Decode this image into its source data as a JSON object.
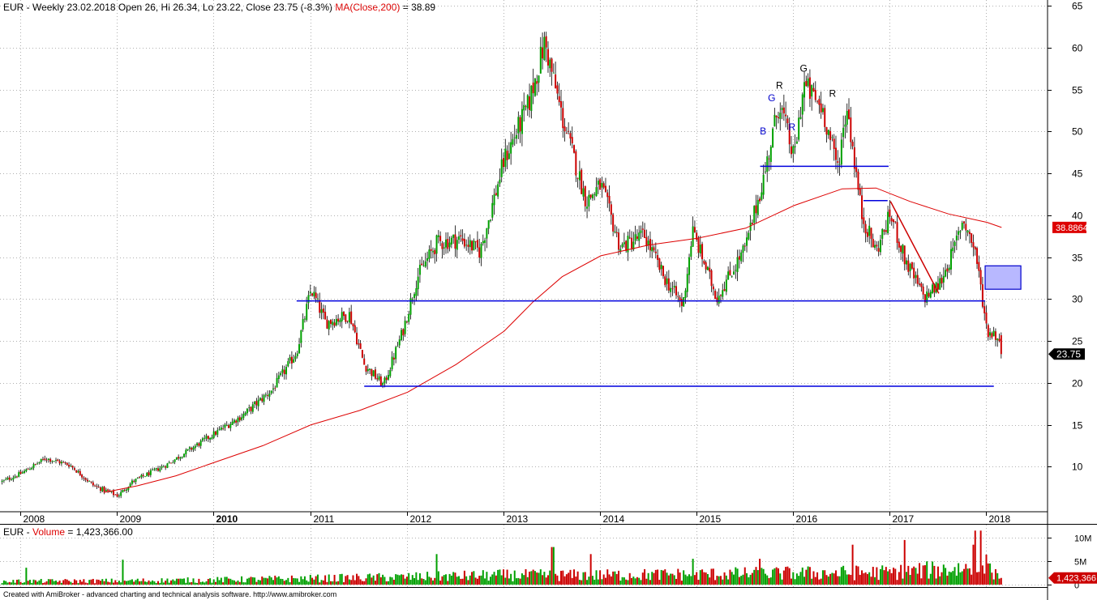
{
  "header": {
    "symbol": "EUR",
    "title_main": "EUR - Weekly 23.02.2018 Open 26, Hi 26.34, Lo 23.22, Close 23.75 (-8.3%)",
    "ma_label": "MA(Close,200)",
    "ma_value_text": " = 38.89"
  },
  "volume_header": {
    "prefix": "EUR - ",
    "label": "Volume",
    "value_text": " = 1,423,366.00"
  },
  "footer": {
    "text": "Created with AmiBroker - advanced charting and technical analysis software. http://www.amibroker.com"
  },
  "colors": {
    "up": "#00a000",
    "down": "#cc0000",
    "ma": "#dd0000",
    "hline": "#0000dd",
    "box_fill": "#b8b8ff",
    "box_stroke": "#0000cc",
    "grid": "#b0b0b0"
  },
  "chart_data": [
    {
      "type": "candlestick",
      "timeframe": "Weekly",
      "ylim": [
        5,
        66
      ],
      "y_ticks": [
        "65",
        "60",
        "55",
        "50",
        "45",
        "40",
        "35",
        "30",
        "25",
        "20",
        "15",
        "10"
      ],
      "x_ticks": [
        "2008",
        "2009",
        "2010",
        "2011",
        "2012",
        "2013",
        "2014",
        "2015",
        "2016",
        "2017",
        "2018"
      ],
      "last_bar": {
        "date": "23.02.2018",
        "open": 26,
        "high": 26.34,
        "low": 23.22,
        "close": 23.75,
        "change_pct": -8.3
      },
      "price_path": [
        [
          2007.8,
          8.5
        ],
        [
          2008.0,
          9.5
        ],
        [
          2008.25,
          11.3
        ],
        [
          2008.5,
          10.5
        ],
        [
          2008.75,
          8.0
        ],
        [
          2009.0,
          6.8
        ],
        [
          2009.15,
          8.5
        ],
        [
          2009.5,
          10.5
        ],
        [
          2009.9,
          13.5
        ],
        [
          2010.3,
          16.5
        ],
        [
          2010.6,
          19.5
        ],
        [
          2010.85,
          24.0
        ],
        [
          2011.0,
          31.5
        ],
        [
          2011.15,
          27.5
        ],
        [
          2011.4,
          28.5
        ],
        [
          2011.55,
          22.5
        ],
        [
          2011.75,
          20.0
        ],
        [
          2011.95,
          26.5
        ],
        [
          2012.1,
          33.0
        ],
        [
          2012.3,
          37.0
        ],
        [
          2012.55,
          37.5
        ],
        [
          2012.75,
          36.0
        ],
        [
          2013.0,
          47.0
        ],
        [
          2013.25,
          53.5
        ],
        [
          2013.42,
          61.0
        ],
        [
          2013.6,
          52.0
        ],
        [
          2013.85,
          42.0
        ],
        [
          2014.0,
          44.0
        ],
        [
          2014.2,
          36.5
        ],
        [
          2014.45,
          38.0
        ],
        [
          2014.65,
          33.0
        ],
        [
          2014.85,
          29.5
        ],
        [
          2014.95,
          38.5
        ],
        [
          2015.2,
          30.5
        ],
        [
          2015.35,
          33.5
        ],
        [
          2015.5,
          36.5
        ],
        [
          2015.7,
          45.5
        ],
        [
          2015.85,
          54.0
        ],
        [
          2016.0,
          47.0
        ],
        [
          2016.1,
          56.0
        ],
        [
          2016.3,
          53.0
        ],
        [
          2016.45,
          46.0
        ],
        [
          2016.55,
          53.5
        ],
        [
          2016.7,
          40.5
        ],
        [
          2016.85,
          36.0
        ],
        [
          2017.0,
          40.5
        ],
        [
          2017.15,
          35.0
        ],
        [
          2017.35,
          30.5
        ],
        [
          2017.5,
          32.0
        ],
        [
          2017.65,
          36.0
        ],
        [
          2017.75,
          40.0
        ],
        [
          2017.88,
          36.0
        ],
        [
          2018.0,
          26.5
        ],
        [
          2018.1,
          26.0
        ],
        [
          2018.15,
          23.75
        ]
      ],
      "ma_series": {
        "name": "MA(Close,200)",
        "last_value": 38.89,
        "last_value_label": "38.8864",
        "points": [
          [
            2008.85,
            7.2
          ],
          [
            2009.2,
            8.0
          ],
          [
            2009.6,
            9.2
          ],
          [
            2010.0,
            10.8
          ],
          [
            2010.5,
            12.8
          ],
          [
            2011.0,
            15.3
          ],
          [
            2011.5,
            17.0
          ],
          [
            2012.0,
            19.2
          ],
          [
            2012.5,
            22.5
          ],
          [
            2013.0,
            26.5
          ],
          [
            2013.3,
            30.0
          ],
          [
            2013.6,
            33.0
          ],
          [
            2014.0,
            35.5
          ],
          [
            2014.5,
            36.8
          ],
          [
            2015.0,
            37.6
          ],
          [
            2015.5,
            38.8
          ],
          [
            2016.0,
            41.5
          ],
          [
            2016.5,
            43.5
          ],
          [
            2016.85,
            43.6
          ],
          [
            2017.2,
            42.0
          ],
          [
            2017.6,
            40.5
          ],
          [
            2018.0,
            39.5
          ],
          [
            2018.15,
            38.89
          ]
        ]
      },
      "last_price_label": "23.75",
      "horizontal_lines": [
        {
          "y": 30.1,
          "x_start": 2010.85,
          "x_end": 2017.98
        },
        {
          "y": 19.9,
          "x_start": 2011.55,
          "x_end": 2018.07
        },
        {
          "y": 46.2,
          "x_start": 2015.65,
          "x_end": 2016.98
        },
        {
          "y": 42.1,
          "x_start": 2016.72,
          "x_end": 2016.97
        }
      ],
      "trend_lines": [
        {
          "x1": 2017.0,
          "y1": 42.0,
          "x2": 2017.5,
          "y2": 31.0
        }
      ],
      "box": {
        "x1": 2017.98,
        "x2": 2018.35,
        "y1": 31.5,
        "y2": 34.3
      },
      "annotations": [
        {
          "text": "R",
          "x": 2015.85,
          "y": 55.5,
          "color": "#000000"
        },
        {
          "text": "G",
          "x": 2016.1,
          "y": 57.5,
          "color": "#000000"
        },
        {
          "text": "R",
          "x": 2016.4,
          "y": 54.5,
          "color": "#000000"
        },
        {
          "text": "G",
          "x": 2015.77,
          "y": 54.0,
          "color": "#0000cc"
        },
        {
          "text": "B",
          "x": 2015.68,
          "y": 50.0,
          "color": "#0000cc"
        },
        {
          "text": "R",
          "x": 2015.98,
          "y": 50.5,
          "color": "#0000cc"
        }
      ]
    },
    {
      "type": "bar",
      "name": "Volume",
      "y_ticks": [
        "10M",
        "5M",
        "0"
      ],
      "ylim": [
        0,
        12000000
      ],
      "last_value": 1423366,
      "last_value_label": "1,423,366",
      "profile": [
        [
          2007.8,
          0.7
        ],
        [
          2009.0,
          0.8
        ],
        [
          2010.0,
          1.0
        ],
        [
          2011.0,
          1.3
        ],
        [
          2012.0,
          1.6
        ],
        [
          2013.0,
          2.0
        ],
        [
          2014.0,
          2.0
        ],
        [
          2015.0,
          2.2
        ],
        [
          2016.0,
          2.4
        ],
        [
          2017.0,
          2.6
        ],
        [
          2017.8,
          3.5
        ],
        [
          2018.0,
          4.0
        ],
        [
          2018.15,
          1.4
        ]
      ],
      "spikes": [
        {
          "x": 2008.05,
          "v": 3.6
        },
        {
          "x": 2009.05,
          "v": 5.3
        },
        {
          "x": 2012.3,
          "v": 6.5
        },
        {
          "x": 2013.5,
          "v": 8.0
        },
        {
          "x": 2013.9,
          "v": 6.5
        },
        {
          "x": 2014.95,
          "v": 5.5
        },
        {
          "x": 2015.65,
          "v": 5.5
        },
        {
          "x": 2016.6,
          "v": 8.5
        },
        {
          "x": 2017.15,
          "v": 9.5
        },
        {
          "x": 2017.85,
          "v": 8.5
        },
        {
          "x": 2017.88,
          "v": 11.5
        },
        {
          "x": 2017.93,
          "v": 11.5
        },
        {
          "x": 2018.02,
          "v": 4.5
        }
      ]
    }
  ]
}
